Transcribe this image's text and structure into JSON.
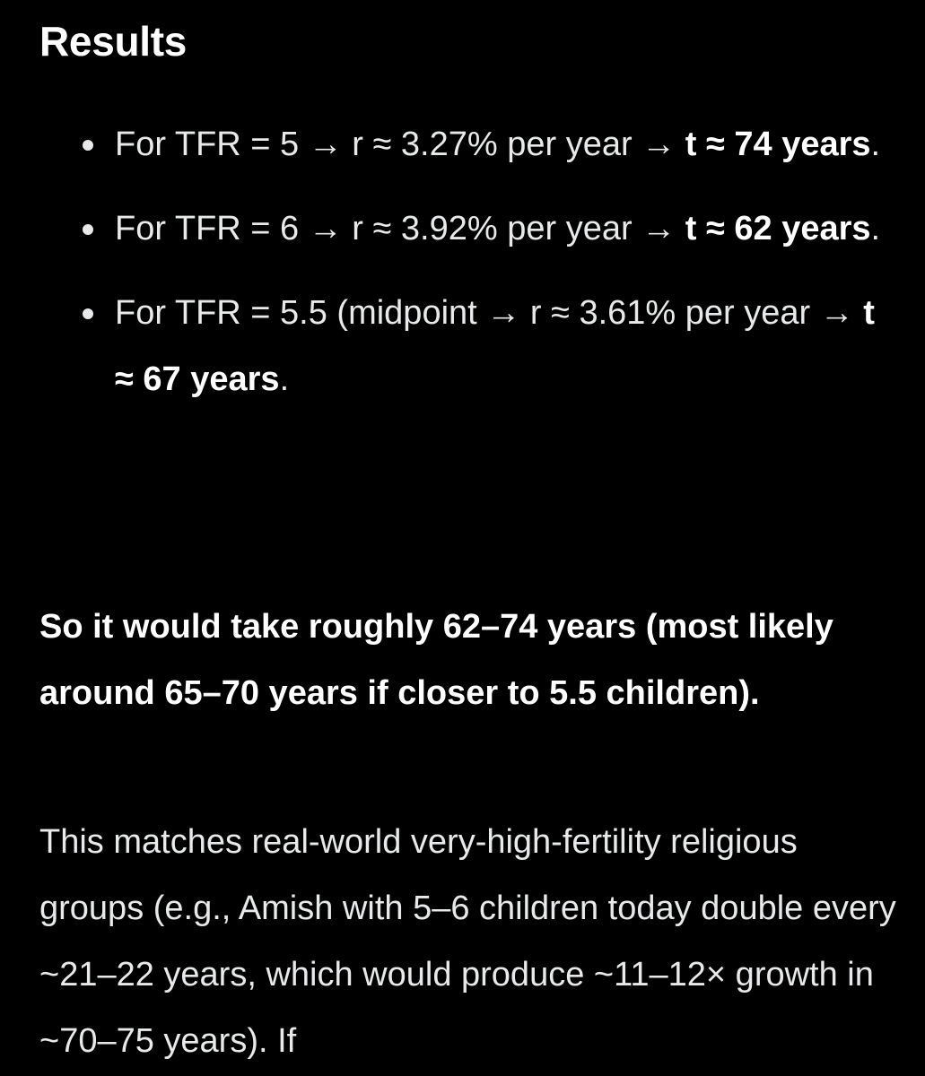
{
  "heading": "Results",
  "results": [
    {
      "text": "For TFR = 5 → r ≈ 3.27% per year → ",
      "bold": "t ≈ 74 years",
      "end": "."
    },
    {
      "text": "For TFR = 6 → r ≈ 3.92% per year → ",
      "bold": "t ≈ 62 years",
      "end": "."
    },
    {
      "text": "For TFR = 5.5 (midpoint → r ≈ 3.61% per year → ",
      "bold": "t ≈ 67 years",
      "end": "."
    }
  ],
  "summary": "So it would take roughly 62–74 years (most likely around 65–70 years if closer to 5.5 children).",
  "paragraph": "This matches real-world very-high-fertility religious groups (e.g., Amish with 5–6 children today double every ~21–22 years, which would produce ~11–12× growth in ~70–75 years). If"
}
